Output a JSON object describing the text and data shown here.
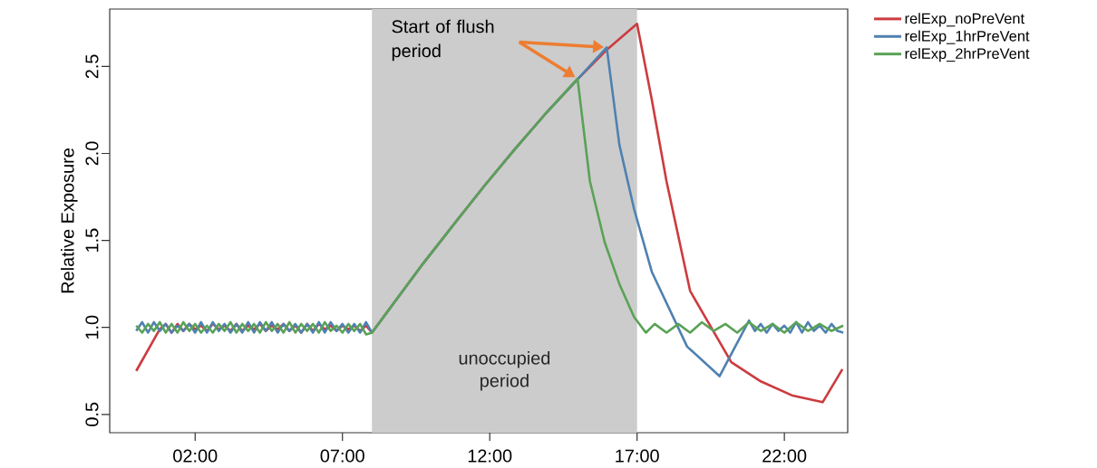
{
  "chart_data": {
    "type": "line",
    "ylabel": "Relative Exposure",
    "xlim": [
      -0.9,
      24.15
    ],
    "ylim": [
      0.395,
      2.83
    ],
    "xticks": [
      {
        "value": 2,
        "label": "02:00"
      },
      {
        "value": 7,
        "label": "07:00"
      },
      {
        "value": 12,
        "label": "12:00"
      },
      {
        "value": 17,
        "label": "17:00"
      },
      {
        "value": 22,
        "label": "22:00"
      }
    ],
    "yticks": [
      0.5,
      {
        "value": 1,
        "label": "1.0"
      },
      1.5,
      {
        "value": 2,
        "label": "2.0"
      },
      2.5
    ],
    "grid": false,
    "legend": "top right",
    "marker": "none",
    "line_style": "solid",
    "bands": [
      {
        "axis": "x",
        "from": 8,
        "to": 17,
        "label": "unoccupied period",
        "color": "#cccccc"
      }
    ],
    "annotations": [
      "Start of flush period"
    ],
    "series": [
      {
        "name": "relExp_noPreVent",
        "color": "#cc3b3f",
        "x": [
          0,
          0.8,
          1,
          1.2,
          1.4,
          1.6,
          1.8,
          2,
          2.2,
          2.4,
          2.6,
          2.8,
          3,
          3.2,
          3.4,
          3.6,
          3.8,
          4,
          4.2,
          4.4,
          4.6,
          4.8,
          5,
          5.2,
          5.4,
          5.6,
          5.8,
          6,
          6.2,
          6.4,
          6.6,
          6.8,
          7,
          7.2,
          7.4,
          7.6,
          7.8,
          8,
          9.75,
          10.77,
          11.8,
          12.83,
          13.85,
          15,
          16,
          17,
          17.5,
          18,
          18.8,
          20.2,
          21.2,
          22.25,
          23.3,
          23.97
        ],
        "values": [
          0.75,
          0.99,
          1.02,
          0.97,
          1.02,
          0.98,
          1.02,
          0.99,
          1.01,
          0.98,
          1.02,
          0.99,
          1.01,
          0.98,
          1.02,
          0.98,
          1.01,
          0.99,
          1.02,
          0.98,
          1.01,
          0.99,
          1.02,
          0.98,
          1.01,
          0.97,
          1.02,
          0.98,
          1.02,
          0.99,
          1.01,
          0.98,
          1.01,
          0.99,
          1.01,
          0.98,
          1.01,
          0.97,
          1.37,
          1.59,
          1.81,
          2.02,
          2.22,
          2.43,
          2.6,
          2.745,
          2.31,
          1.84,
          1.21,
          0.8,
          0.69,
          0.61,
          0.57,
          0.76
        ]
      },
      {
        "name": "relExp_1hrPreVent",
        "color": "#4f81b0",
        "x": [
          0,
          0.2,
          0.4,
          0.6,
          0.8,
          1,
          1.2,
          1.4,
          1.6,
          1.8,
          2,
          2.2,
          2.4,
          2.6,
          2.8,
          3,
          3.2,
          3.4,
          3.6,
          3.8,
          4,
          4.2,
          4.4,
          4.6,
          4.8,
          5,
          5.2,
          5.4,
          5.6,
          5.8,
          6,
          6.2,
          6.4,
          6.6,
          6.8,
          7,
          7.2,
          7.4,
          7.6,
          7.8,
          8,
          9.75,
          10.77,
          11.8,
          12.83,
          13.85,
          15,
          15.97,
          16.4,
          16.9,
          17.5,
          18.7,
          19.8,
          20.8,
          21,
          21.2,
          21.4,
          21.6,
          21.8,
          22,
          22.2,
          22.4,
          22.6,
          22.8,
          23,
          23.2,
          23.4,
          23.6,
          23.8,
          24
        ],
        "values": [
          0.98,
          1.03,
          0.97,
          1.03,
          0.98,
          1.02,
          0.97,
          1.01,
          0.98,
          1.02,
          0.97,
          1.03,
          0.97,
          1.03,
          0.98,
          1.02,
          0.97,
          1.02,
          0.97,
          1.03,
          0.97,
          1.03,
          0.98,
          1.03,
          0.97,
          1.02,
          0.98,
          1.02,
          0.97,
          1.02,
          0.97,
          1.03,
          0.97,
          1.03,
          0.98,
          1.02,
          0.97,
          1.02,
          0.97,
          1.03,
          0.97,
          1.37,
          1.59,
          1.81,
          2.02,
          2.22,
          2.43,
          2.61,
          2.05,
          1.68,
          1.32,
          0.89,
          0.72,
          1.04,
          0.98,
          1.02,
          0.97,
          1.02,
          0.98,
          1.01,
          0.97,
          1.03,
          0.97,
          1.03,
          0.98,
          1.01,
          0.97,
          1.02,
          0.98,
          0.97
        ]
      },
      {
        "name": "relExp_2hrPreVent",
        "color": "#5aa256",
        "x": [
          0,
          0.2,
          0.4,
          0.6,
          0.8,
          1,
          1.2,
          1.4,
          1.6,
          1.8,
          2,
          2.2,
          2.4,
          2.6,
          2.8,
          3,
          3.2,
          3.4,
          3.6,
          3.8,
          4,
          4.2,
          4.4,
          4.6,
          4.8,
          5,
          5.2,
          5.4,
          5.6,
          5.8,
          6,
          6.2,
          6.4,
          6.6,
          6.8,
          7,
          7.2,
          7.4,
          7.6,
          7.8,
          8,
          9.75,
          10.77,
          11.8,
          12.83,
          13.85,
          14.98,
          15.4,
          15.9,
          16.4,
          16.9,
          17.3,
          17.6,
          18,
          18.4,
          18.8,
          19.2,
          19.6,
          20,
          20.4,
          20.8,
          21.2,
          21.6,
          22,
          22.4,
          22.8,
          23.2,
          23.6,
          24
        ],
        "values": [
          1.01,
          0.97,
          1.02,
          0.98,
          1.03,
          0.97,
          1.02,
          0.97,
          1.03,
          0.98,
          1.02,
          0.97,
          1.01,
          0.97,
          1.02,
          0.98,
          1.03,
          0.97,
          1.02,
          0.98,
          1.02,
          0.97,
          1.03,
          0.98,
          1.02,
          0.97,
          1.03,
          0.97,
          1.02,
          0.98,
          1.02,
          0.97,
          1.03,
          0.98,
          1.01,
          0.97,
          1.02,
          0.98,
          1.02,
          0.96,
          0.97,
          1.37,
          1.59,
          1.81,
          2.02,
          2.22,
          2.43,
          1.84,
          1.49,
          1.25,
          1.06,
          0.97,
          1.02,
          0.97,
          1.02,
          0.97,
          1.03,
          0.98,
          1.02,
          0.97,
          1.03,
          0.98,
          1.02,
          0.97,
          1.03,
          0.98,
          1.02,
          0.98,
          1.01
        ]
      }
    ]
  }
}
